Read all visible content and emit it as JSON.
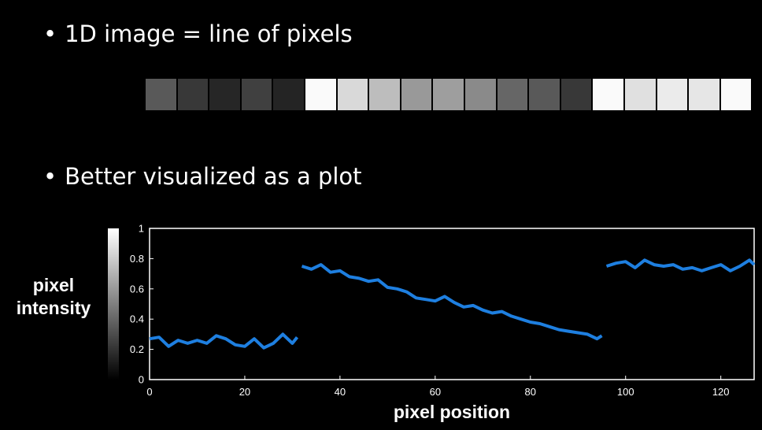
{
  "bullets": {
    "first": "1D image = line of pixels",
    "second": "Better visualized as a plot",
    "dot": "•"
  },
  "pixel_strip": [
    0.35,
    0.22,
    0.15,
    0.25,
    0.14,
    0.98,
    0.85,
    0.74,
    0.6,
    0.62,
    0.54,
    0.4,
    0.35,
    0.22,
    0.98,
    0.88,
    0.92,
    0.9,
    0.98
  ],
  "chart_data": {
    "type": "line",
    "xlabel": "pixel position",
    "ylabel": "pixel intensity",
    "xlim": [
      0,
      127
    ],
    "ylim": [
      0,
      1
    ],
    "xticks": [
      "0",
      "20",
      "40",
      "60",
      "80",
      "100",
      "120"
    ],
    "yticks": [
      "0",
      "0.2",
      "0.4",
      "0.6",
      "0.8",
      "1"
    ],
    "line_color": "#1e7fe0",
    "segments": [
      {
        "x": [
          0,
          2,
          4,
          6,
          8,
          10,
          12,
          14,
          16,
          18,
          20,
          22,
          24,
          26,
          28,
          30,
          31
        ],
        "y": [
          0.27,
          0.28,
          0.22,
          0.26,
          0.24,
          0.26,
          0.24,
          0.29,
          0.27,
          0.23,
          0.22,
          0.27,
          0.21,
          0.24,
          0.3,
          0.24,
          0.28
        ]
      },
      {
        "x": [
          32,
          34,
          36,
          38,
          40,
          42,
          44,
          46,
          48,
          50,
          52,
          54,
          56,
          58,
          60,
          62,
          64,
          66,
          68,
          70,
          72,
          74,
          76,
          78,
          80,
          82,
          84,
          86,
          88,
          90,
          92,
          94,
          95
        ],
        "y": [
          0.75,
          0.73,
          0.76,
          0.71,
          0.72,
          0.68,
          0.67,
          0.65,
          0.66,
          0.61,
          0.6,
          0.58,
          0.54,
          0.53,
          0.52,
          0.55,
          0.51,
          0.48,
          0.49,
          0.46,
          0.44,
          0.45,
          0.42,
          0.4,
          0.38,
          0.37,
          0.35,
          0.33,
          0.32,
          0.31,
          0.3,
          0.27,
          0.29
        ]
      },
      {
        "x": [
          96,
          98,
          100,
          102,
          104,
          106,
          108,
          110,
          112,
          114,
          116,
          118,
          120,
          122,
          124,
          126,
          127
        ],
        "y": [
          0.75,
          0.77,
          0.78,
          0.74,
          0.79,
          0.76,
          0.75,
          0.76,
          0.73,
          0.74,
          0.72,
          0.74,
          0.76,
          0.72,
          0.75,
          0.79,
          0.76
        ]
      }
    ]
  }
}
